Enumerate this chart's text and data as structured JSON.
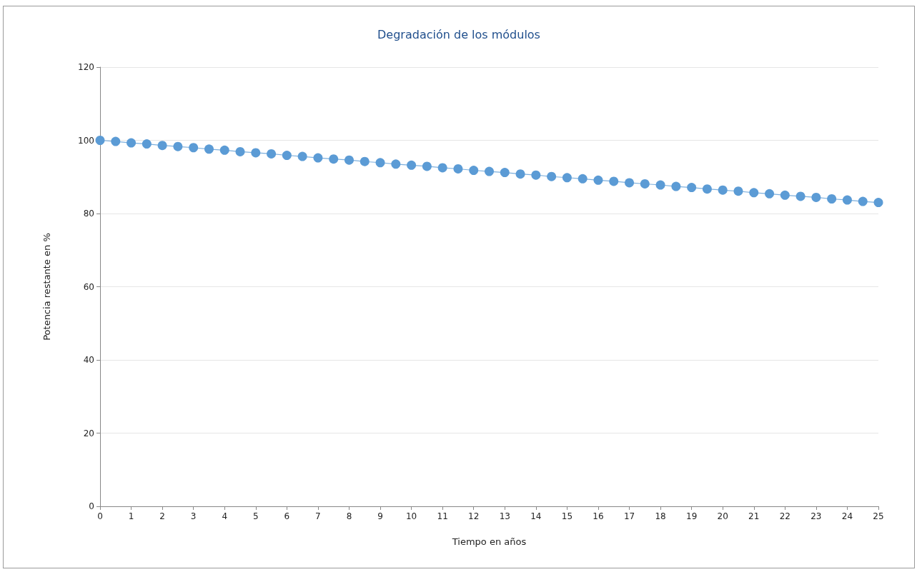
{
  "chart_data": {
    "type": "line",
    "title": "Degradación de los módulos",
    "xlabel": "Tiempo en años",
    "ylabel": "Potencia restante en %",
    "x": [
      0,
      0.5,
      1,
      1.5,
      2,
      2.5,
      3,
      3.5,
      4,
      4.5,
      5,
      5.5,
      6,
      6.5,
      7,
      7.5,
      8,
      8.5,
      9,
      9.5,
      10,
      10.5,
      11,
      11.5,
      12,
      12.5,
      13,
      13.5,
      14,
      14.5,
      15,
      15.5,
      16,
      16.5,
      17,
      17.5,
      18,
      18.5,
      19,
      19.5,
      20,
      20.5,
      21,
      21.5,
      22,
      22.5,
      23,
      23.5,
      24,
      24.5,
      25
    ],
    "series": [
      {
        "color": "#5b9bd5",
        "values": [
          100,
          99.7,
          99.3,
          99.0,
          98.6,
          98.3,
          98.0,
          97.6,
          97.3,
          96.9,
          96.6,
          96.3,
          95.9,
          95.6,
          95.2,
          94.9,
          94.6,
          94.2,
          93.9,
          93.5,
          93.2,
          92.9,
          92.5,
          92.2,
          91.8,
          91.5,
          91.2,
          90.8,
          90.5,
          90.1,
          89.8,
          89.5,
          89.1,
          88.8,
          88.4,
          88.1,
          87.8,
          87.4,
          87.1,
          86.7,
          86.4,
          86.1,
          85.7,
          85.4,
          85.0,
          84.7,
          84.4,
          84.0,
          83.7,
          83.3,
          83.0
        ]
      }
    ],
    "xlim": [
      0,
      25
    ],
    "xticks": [
      0,
      1,
      2,
      3,
      4,
      5,
      6,
      7,
      8,
      9,
      10,
      11,
      12,
      13,
      14,
      15,
      16,
      17,
      18,
      19,
      20,
      21,
      22,
      23,
      24,
      25
    ],
    "ylim": [
      0,
      120
    ],
    "yticks": [
      0,
      20,
      40,
      60,
      80,
      100,
      120
    ],
    "grid": "y",
    "marker": "circle",
    "line_style": "solid"
  }
}
